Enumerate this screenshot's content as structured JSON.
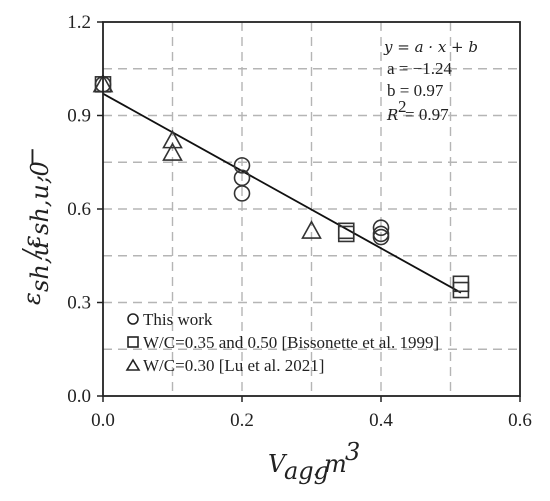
{
  "chart_data": {
    "type": "scatter",
    "xlabel": "V_agg, m^3",
    "ylabel": "ε_sh,u / ε_sh,u,0, −",
    "xlim": [
      0,
      0.6
    ],
    "ylim": [
      0,
      1.2
    ],
    "xticks": [
      "0.0",
      "0.2",
      "0.4",
      "0.6"
    ],
    "yticks": [
      "0.0",
      "0.3",
      "0.6",
      "0.9",
      "1.2"
    ],
    "grid": true,
    "legend_position": "bottom-left",
    "series": [
      {
        "name": "This work",
        "marker": "circle",
        "points": [
          [
            0.0,
            1.0
          ],
          [
            0.2,
            0.74
          ],
          [
            0.2,
            0.7
          ],
          [
            0.2,
            0.65
          ],
          [
            0.4,
            0.54
          ],
          [
            0.4,
            0.52
          ],
          [
            0.4,
            0.51
          ]
        ]
      },
      {
        "name": "W/C=0.35 and 0.50 [Bissonette et al. 1999]",
        "marker": "square",
        "points": [
          [
            0.0,
            1.0
          ],
          [
            0.35,
            0.52
          ],
          [
            0.35,
            0.53
          ],
          [
            0.515,
            0.34
          ],
          [
            0.515,
            0.36
          ]
        ]
      },
      {
        "name": "W/C=0.30 [Lu et al. 2021]",
        "marker": "triangle",
        "points": [
          [
            0.0,
            1.0
          ],
          [
            0.1,
            0.82
          ],
          [
            0.1,
            0.78
          ],
          [
            0.3,
            0.53
          ]
        ]
      }
    ],
    "fit_line": {
      "a": -1.24,
      "b": 0.97,
      "x_range": [
        0.0,
        0.515
      ]
    },
    "annotation": {
      "equation": "y = a · x + b",
      "a": "a = −1.24",
      "b": "b = 0.97",
      "r2": "= 0.97"
    }
  }
}
